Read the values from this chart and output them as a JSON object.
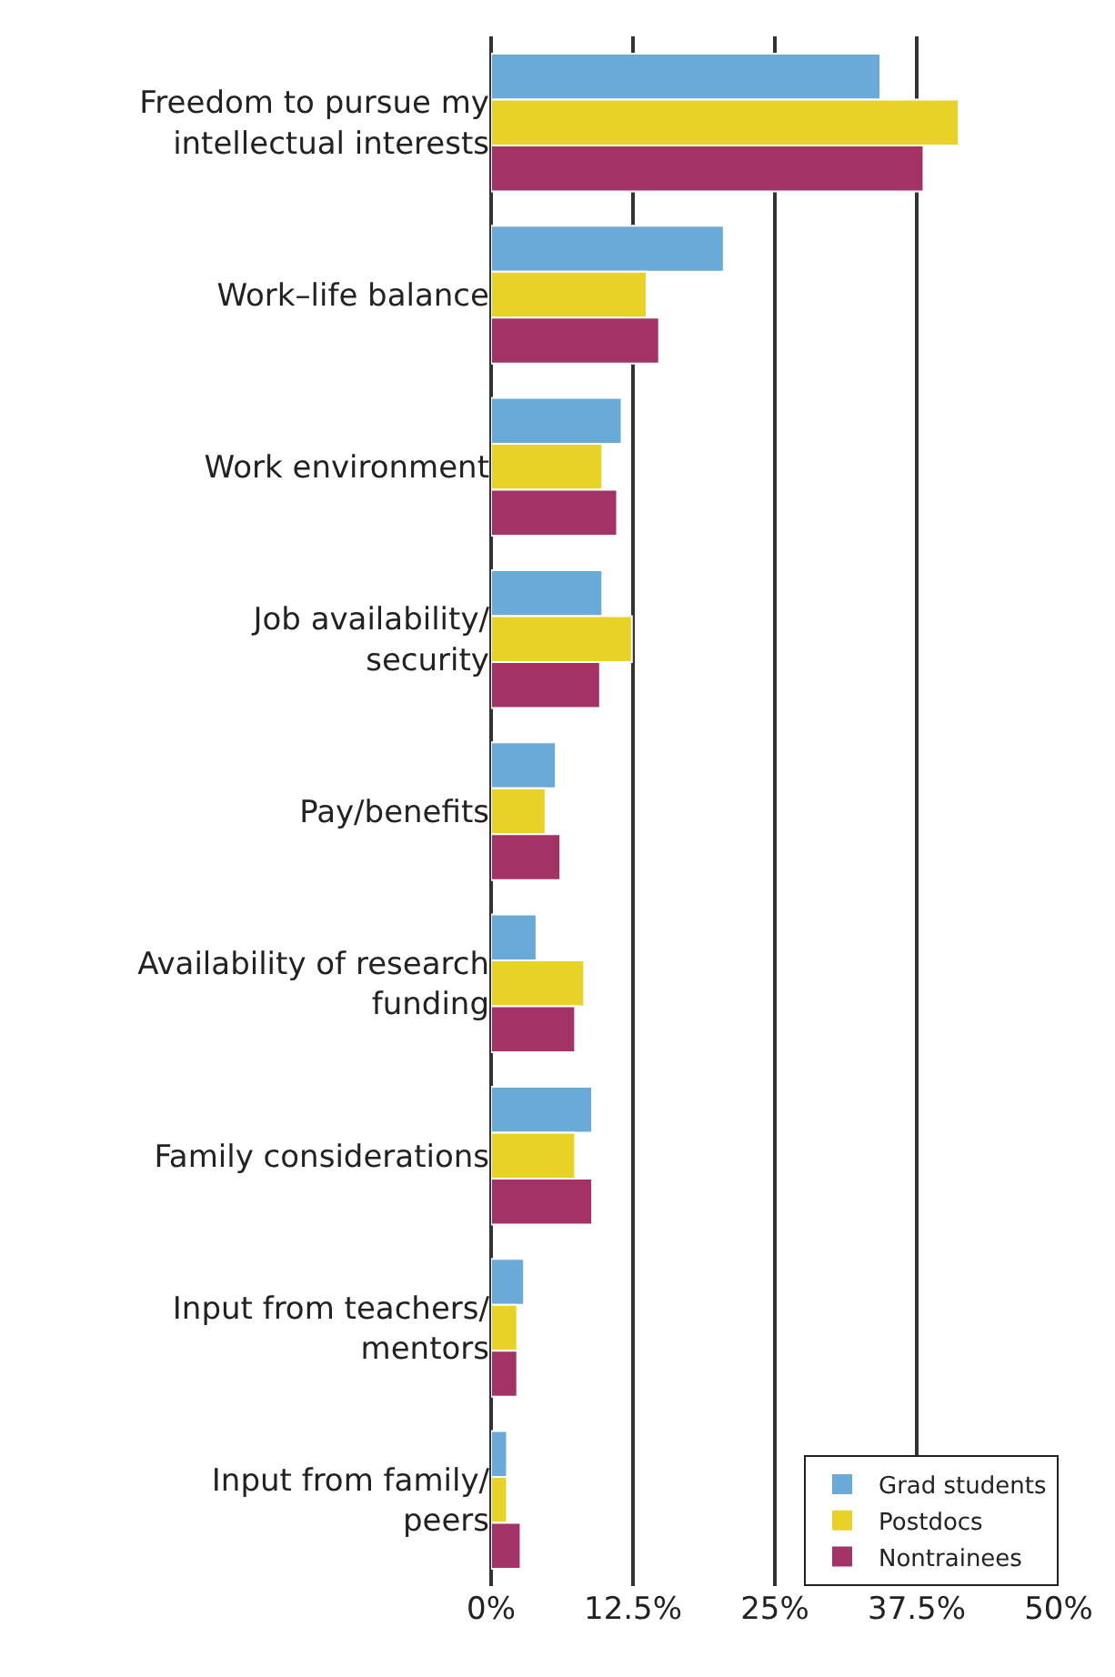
{
  "chart_data": {
    "type": "bar",
    "orientation": "horizontal",
    "categories": [
      "Freedom to pursue my\nintellectual interests",
      "Work–life balance",
      "Work environment",
      "Job availability/\nsecurity",
      "Pay/benefits",
      "Availability of research\nfunding",
      "Family considerations",
      "Input from teachers/\nmentors",
      "Input from family/\npeers"
    ],
    "series": [
      {
        "name": "Grad students",
        "color": "#6aaad8",
        "values": [
          34.3,
          20.5,
          11.5,
          9.8,
          5.7,
          4.0,
          8.9,
          2.9,
          1.4
        ]
      },
      {
        "name": "Postdocs",
        "color": "#e8d227",
        "values": [
          41.2,
          13.7,
          9.8,
          12.4,
          4.8,
          8.2,
          7.4,
          2.3,
          1.4
        ]
      },
      {
        "name": "Nontrainees",
        "color": "#a33266",
        "values": [
          38.1,
          14.8,
          11.1,
          9.6,
          6.1,
          7.4,
          8.9,
          2.3,
          2.6
        ]
      }
    ],
    "xlim": [
      0,
      50
    ],
    "xticks": [
      {
        "value": 0,
        "label": "0%"
      },
      {
        "value": 12.5,
        "label": "12.5%"
      },
      {
        "value": 25,
        "label": "25%"
      },
      {
        "value": 37.5,
        "label": "37.5%"
      },
      {
        "value": 50,
        "label": "50%"
      }
    ],
    "grid": "x",
    "legend": "bottom right"
  }
}
